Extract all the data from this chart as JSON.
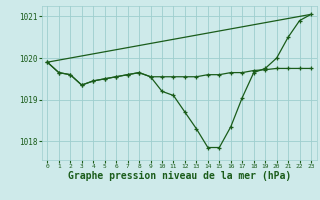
{
  "background_color": "#ceeaea",
  "grid_color": "#9ecece",
  "line_color": "#1a5c1a",
  "xlabel": "Graphe pression niveau de la mer (hPa)",
  "xlabel_fontsize": 7,
  "xlim": [
    -0.5,
    23.5
  ],
  "ylim": [
    1017.55,
    1021.25
  ],
  "yticks": [
    1018,
    1019,
    1020,
    1021
  ],
  "xticks": [
    0,
    1,
    2,
    3,
    4,
    5,
    6,
    7,
    8,
    9,
    10,
    11,
    12,
    13,
    14,
    15,
    16,
    17,
    18,
    19,
    20,
    21,
    22,
    23
  ],
  "series": [
    {
      "x": [
        0,
        1,
        2,
        3,
        4,
        5,
        6,
        7,
        8,
        9,
        10,
        11,
        12,
        13,
        14,
        15,
        16,
        17,
        18,
        19,
        20,
        21,
        22,
        23
      ],
      "y": [
        1019.9,
        1019.65,
        1019.6,
        1019.35,
        1019.45,
        1019.5,
        1019.55,
        1019.6,
        1019.65,
        1019.55,
        1019.2,
        1019.1,
        1018.7,
        1018.3,
        1017.85,
        1017.85,
        1018.35,
        1019.05,
        1019.65,
        1019.75,
        1020.0,
        1020.5,
        1020.9,
        1021.05
      ]
    },
    {
      "x": [
        0,
        1,
        2,
        3,
        4,
        5,
        6,
        7,
        8,
        9,
        10,
        11,
        12,
        13,
        14,
        15,
        16,
        17,
        18,
        19,
        20,
        21,
        22,
        23
      ],
      "y": [
        1019.9,
        1019.65,
        1019.6,
        1019.35,
        1019.45,
        1019.5,
        1019.55,
        1019.6,
        1019.65,
        1019.55,
        1019.55,
        1019.55,
        1019.55,
        1019.55,
        1019.6,
        1019.6,
        1019.65,
        1019.65,
        1019.7,
        1019.72,
        1019.75,
        1019.75,
        1019.75,
        1019.75
      ]
    },
    {
      "x": [
        0,
        23
      ],
      "y": [
        1019.9,
        1021.05
      ]
    }
  ]
}
